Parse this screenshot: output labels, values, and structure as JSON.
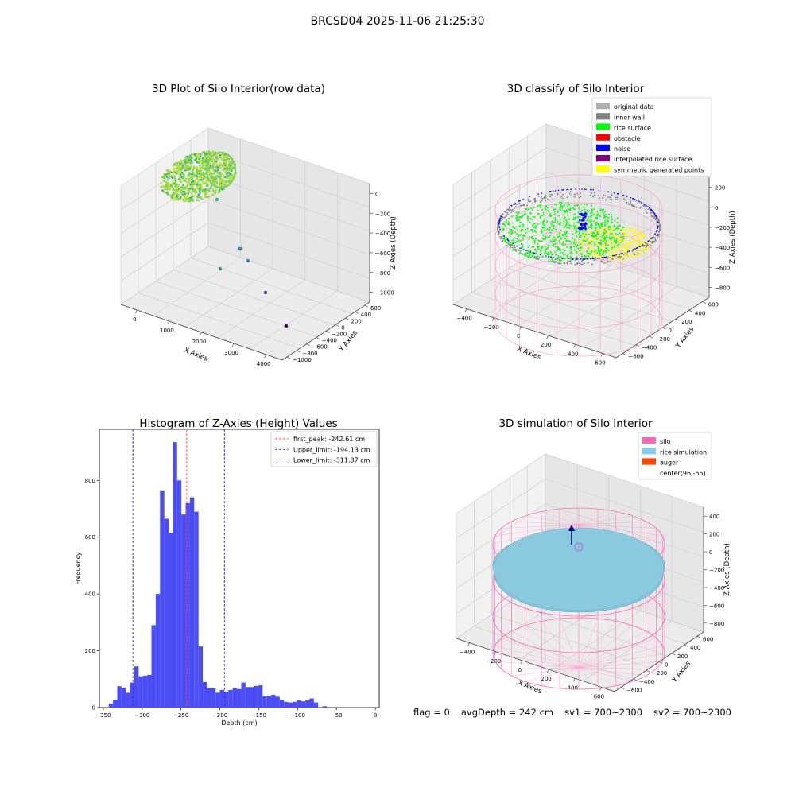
{
  "suptitle": "BRCSD04 2025-11-06 21:25:30",
  "footer": {
    "flag": "flag = 0",
    "avg_depth": "avgDepth = 242 cm",
    "sv1": "sv1 = 700~2300",
    "sv2": "sv2 = 700~2300"
  },
  "colors": {
    "histogram_bar": "#4a4cf5",
    "first_peak": "#ff4a2a",
    "limit_lines": "#2a2ad8",
    "silo_mesh": "#ff7fc0",
    "rice_simulation": "#8bc9de",
    "auger": "#ff4500",
    "rice_surface": "#00ff00",
    "noise": "#0000ff",
    "inner_wall": "#808080",
    "symmetric": "#ffff00",
    "obstacle": "#ff0000",
    "interpolated": "#800080",
    "original": "#b0b0b0"
  },
  "chart_data": [
    {
      "type": "scatter",
      "projection": "3d",
      "title": "3D Plot of Silo Interior(row data)",
      "xlabel": "X Axies",
      "ylabel": "Y Axies",
      "zlabel": "Z Axies (Depth)",
      "x_ticks": [
        "0",
        "1000",
        "2000",
        "3000",
        "4000"
      ],
      "y_ticks": [
        "600",
        "400",
        "200",
        "0",
        "−200",
        "−400",
        "−600",
        "−800",
        "−1000"
      ],
      "z_ticks": [
        "0",
        "−200",
        "−400",
        "−600",
        "−800",
        "−1000"
      ],
      "colormap": "viridis",
      "outliers": [
        {
          "x": 1100,
          "y": 150,
          "z": -420
        },
        {
          "x": 1500,
          "y": -150,
          "z": -850
        },
        {
          "x": 1550,
          "y": -150,
          "z": -850
        },
        {
          "x": 1800,
          "y": -200,
          "z": -900
        },
        {
          "x": 1300,
          "y": -450,
          "z": -950
        },
        {
          "x": 2700,
          "y": -650,
          "z": -1000
        },
        {
          "x": 3500,
          "y": -900,
          "z": -1050
        }
      ]
    },
    {
      "type": "scatter",
      "projection": "3d",
      "title": "3D classify of Silo Interior",
      "xlabel": "X Axies",
      "ylabel": "Y Axies",
      "zlabel": "Z Axies (Depth)",
      "x_ticks": [
        "−400",
        "−200",
        "0",
        "200",
        "400",
        "600"
      ],
      "y_ticks": [
        "600",
        "400",
        "200",
        "0",
        "−200",
        "−400",
        "−600"
      ],
      "z_ticks": [
        "200",
        "0",
        "−200",
        "−400",
        "−600",
        "−800"
      ],
      "legend_position": "top-right",
      "legend": [
        {
          "label": "original data",
          "color": "#b0b0b0"
        },
        {
          "label": "inner wall",
          "color": "#808080"
        },
        {
          "label": "rice surface",
          "color": "#00ff00"
        },
        {
          "label": "obstacle",
          "color": "#ff0000"
        },
        {
          "label": "noise",
          "color": "#0000ff"
        },
        {
          "label": "interpolated rice surface",
          "color": "#800080"
        },
        {
          "label": "symmetric generated points",
          "color": "#ffff00"
        }
      ]
    },
    {
      "type": "bar",
      "subtype": "histogram",
      "title": "Histogram of Z-Axies (Height) Values",
      "xlabel": "Depth (cm)",
      "ylabel": "Frequency",
      "xlim": [
        -355,
        5
      ],
      "ylim": [
        0,
        980
      ],
      "x_ticks": [
        -350,
        -300,
        -250,
        -200,
        -150,
        -100,
        -50,
        0
      ],
      "y_ticks": [
        0,
        200,
        400,
        600,
        800
      ],
      "bin_width": 5.5,
      "bins_start": -343,
      "values": [
        14,
        28,
        75,
        70,
        52,
        88,
        145,
        110,
        112,
        115,
        290,
        400,
        765,
        665,
        615,
        935,
        800,
        680,
        720,
        740,
        690,
        215,
        90,
        68,
        68,
        52,
        62,
        55,
        62,
        70,
        65,
        88,
        72,
        72,
        76,
        78,
        40,
        40,
        45,
        38,
        28,
        20,
        18,
        20,
        25,
        22,
        25,
        32,
        18,
        0,
        5
      ],
      "vlines": [
        {
          "label": "first_peak: -242.61 cm",
          "x": -242.61,
          "color": "#ff4a2a"
        },
        {
          "label": "Upper_limit: -194.13 cm",
          "x": -194.13,
          "color": "#2a2ad8"
        },
        {
          "label": "Lower_limit: -311.87 cm",
          "x": -311.87,
          "color": "#2a2ad8"
        }
      ],
      "legend_position": "top-right"
    },
    {
      "type": "surface",
      "projection": "3d",
      "title": "3D simulation of Silo Interior",
      "xlabel": "X Axies",
      "ylabel": "Y Axies",
      "zlabel": "Z Axies (Depth)",
      "x_ticks": [
        "−400",
        "−200",
        "0",
        "200",
        "400",
        "600"
      ],
      "y_ticks": [
        "600",
        "400",
        "200",
        "0",
        "−200",
        "−400",
        "−600"
      ],
      "z_ticks": [
        "400",
        "200",
        "0",
        "−200",
        "−400",
        "−600",
        "−800"
      ],
      "legend_position": "top-right",
      "legend": [
        {
          "label": "silo",
          "color": "#ff69b4"
        },
        {
          "label": "rice simulation",
          "color": "#87ceeb"
        },
        {
          "label": "auger",
          "color": "#ff4500"
        },
        {
          "label": "center(96,-55)",
          "color": "none"
        }
      ]
    }
  ]
}
